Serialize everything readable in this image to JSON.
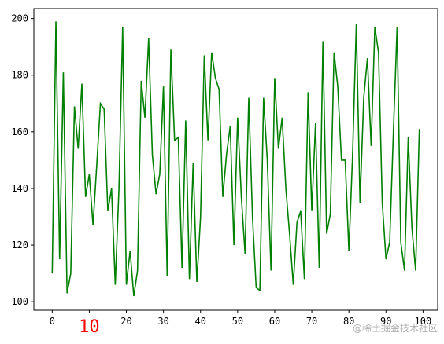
{
  "chart_data": {
    "type": "line",
    "x": [
      0,
      1,
      2,
      3,
      4,
      5,
      6,
      7,
      8,
      9,
      10,
      11,
      12,
      13,
      14,
      15,
      16,
      17,
      18,
      19,
      20,
      21,
      22,
      23,
      24,
      25,
      26,
      27,
      28,
      29,
      30,
      31,
      32,
      33,
      34,
      35,
      36,
      37,
      38,
      39,
      40,
      41,
      42,
      43,
      44,
      45,
      46,
      47,
      48,
      49,
      50,
      51,
      52,
      53,
      54,
      55,
      56,
      57,
      58,
      59,
      60,
      61,
      62,
      63,
      64,
      65,
      66,
      67,
      68,
      69,
      70,
      71,
      72,
      73,
      74,
      75,
      76,
      77,
      78,
      79,
      80,
      81,
      82,
      83,
      84,
      85,
      86,
      87,
      88,
      89,
      90,
      91,
      92,
      93,
      94,
      95,
      96,
      97,
      98,
      99
    ],
    "series": [
      {
        "color": "#008000",
        "values": [
          110,
          199,
          115,
          181,
          103,
          110,
          169,
          154,
          177,
          137,
          145,
          127,
          148,
          170,
          168,
          132,
          140,
          106,
          140,
          197,
          106,
          118,
          102,
          111,
          178,
          165,
          193,
          152,
          138,
          145,
          176,
          109,
          189,
          157,
          158,
          112,
          164,
          108,
          149,
          107,
          130,
          187,
          157,
          188,
          179,
          175,
          137,
          152,
          162,
          120,
          165,
          137,
          117,
          172,
          130,
          105,
          104,
          172,
          150,
          111,
          179,
          154,
          165,
          140,
          124,
          106,
          128,
          132,
          108,
          174,
          132,
          163,
          112,
          192,
          124,
          131,
          188,
          176,
          150,
          150,
          118,
          152,
          198,
          135,
          172,
          186,
          155,
          197,
          188,
          135,
          115,
          121,
          160,
          197,
          121,
          111,
          158,
          126,
          111,
          161
        ]
      }
    ],
    "xlim": [
      -4.95,
      103.95
    ],
    "ylim": [
      97,
      203.5
    ],
    "xticks": [
      0,
      10,
      20,
      30,
      40,
      50,
      60,
      70,
      80,
      90,
      100
    ],
    "yticks": [
      100,
      120,
      140,
      160,
      180,
      200
    ],
    "highlight_tick": {
      "axis": "x",
      "index": 1,
      "color": "#ff0000"
    },
    "watermark": "@稀土掘金技术社区"
  }
}
